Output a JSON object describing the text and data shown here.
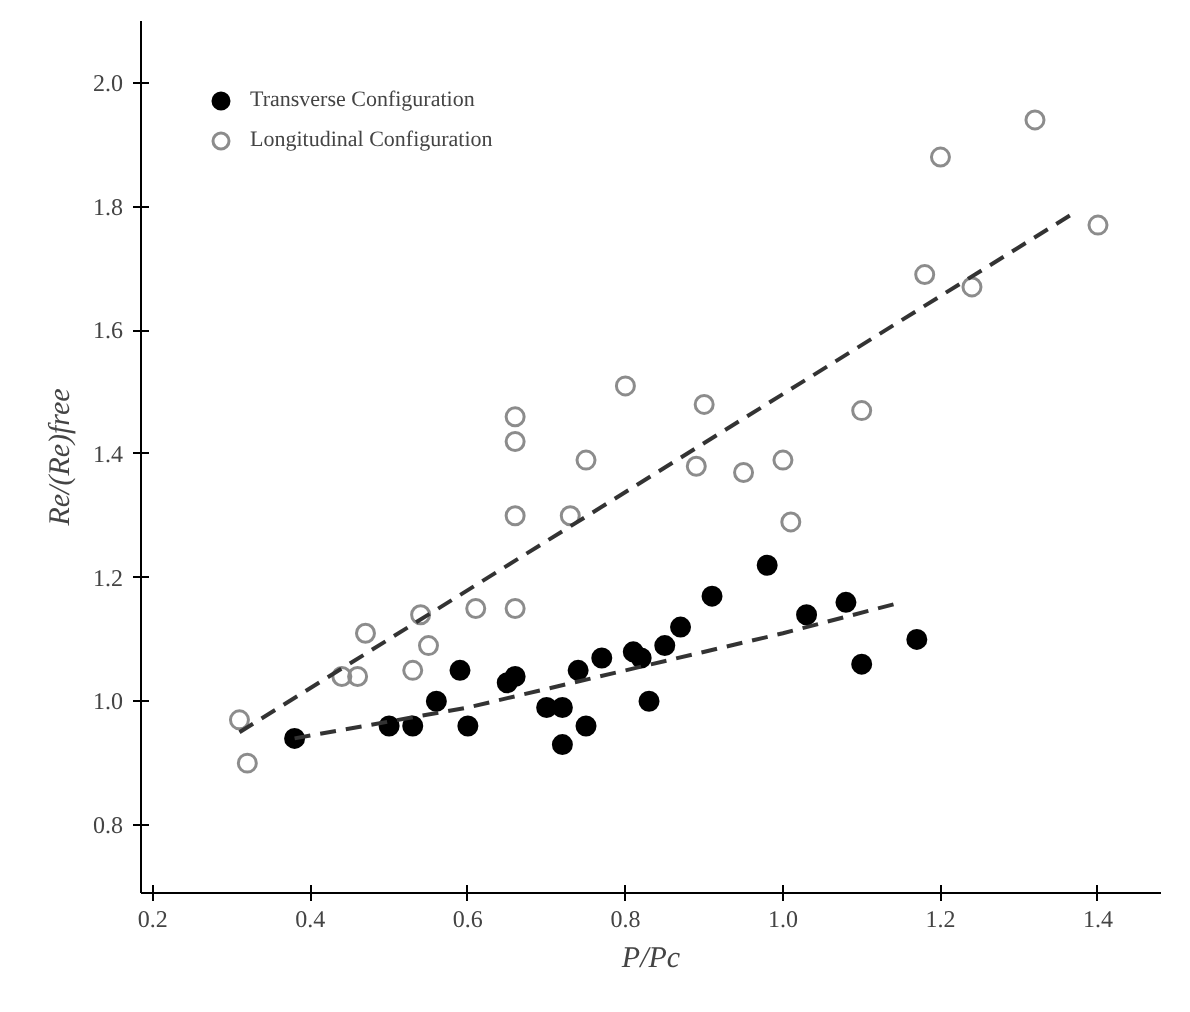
{
  "chart_data": {
    "type": "scatter",
    "xlabel": "P/Pc",
    "ylabel": "Re/(Re)free",
    "xlim": [
      0.185,
      1.48
    ],
    "ylim": [
      0.69,
      2.1
    ],
    "xticks": [
      {
        "value": 0.2,
        "label": "0.2"
      },
      {
        "value": 0.4,
        "label": "0.4"
      },
      {
        "value": 0.6,
        "label": "0.6"
      },
      {
        "value": 0.8,
        "label": "0.8"
      },
      {
        "value": 1.0,
        "label": "1.0"
      },
      {
        "value": 1.2,
        "label": "1.2"
      },
      {
        "value": 1.4,
        "label": "1.4"
      }
    ],
    "yticks": [
      {
        "value": 0.8,
        "label": "0.8"
      },
      {
        "value": 1.0,
        "label": "1.0"
      },
      {
        "value": 1.2,
        "label": "1.2"
      },
      {
        "value": 1.4,
        "label": "1.4"
      },
      {
        "value": 1.6,
        "label": "1.6"
      },
      {
        "value": 1.8,
        "label": "1.8"
      },
      {
        "value": 2.0,
        "label": "2.0"
      }
    ],
    "grid": false,
    "legend": "top left",
    "series": [
      {
        "name": "Transverse Configuration",
        "color": "#000000",
        "marker": "circle",
        "x": [
          0.38,
          0.5,
          0.53,
          0.56,
          0.59,
          0.6,
          0.65,
          0.66,
          0.7,
          0.72,
          0.72,
          0.74,
          0.75,
          0.77,
          0.81,
          0.82,
          0.83,
          0.85,
          0.87,
          0.91,
          0.98,
          1.03,
          1.08,
          1.1,
          1.17
        ],
        "values": [
          0.94,
          0.96,
          0.96,
          1.0,
          1.05,
          0.96,
          1.03,
          1.04,
          0.99,
          0.99,
          0.93,
          1.05,
          0.96,
          1.07,
          1.08,
          1.07,
          1.0,
          1.09,
          1.12,
          1.17,
          1.22,
          1.14,
          1.16,
          1.06,
          1.1
        ]
      },
      {
        "name": "Longitudinal Configuration",
        "color": "#8c8c8c",
        "marker": "circle",
        "x": [
          0.31,
          0.32,
          0.44,
          0.46,
          0.47,
          0.53,
          0.54,
          0.55,
          0.61,
          0.66,
          0.66,
          0.66,
          0.66,
          0.73,
          0.75,
          0.8,
          0.89,
          0.9,
          0.95,
          1.0,
          1.01,
          1.1,
          1.18,
          1.2,
          1.24,
          1.32,
          1.4
        ],
        "values": [
          0.97,
          0.9,
          1.04,
          1.04,
          1.11,
          1.05,
          1.14,
          1.09,
          1.15,
          1.15,
          1.3,
          1.42,
          1.46,
          1.3,
          1.39,
          1.51,
          1.38,
          1.48,
          1.37,
          1.39,
          1.29,
          1.47,
          1.69,
          1.88,
          1.67,
          1.94,
          1.77
        ]
      },
      {
        "type": "line",
        "color": "#333333",
        "line_style": "dashed",
        "x": [
          0.38,
          0.6,
          0.8,
          1.0,
          1.15
        ],
        "values": [
          0.94,
          0.99,
          1.05,
          1.11,
          1.16
        ]
      },
      {
        "type": "line",
        "color": "#333333",
        "line_style": "dashed",
        "x": [
          0.31,
          1.37
        ],
        "values": [
          0.95,
          1.79
        ]
      }
    ]
  }
}
